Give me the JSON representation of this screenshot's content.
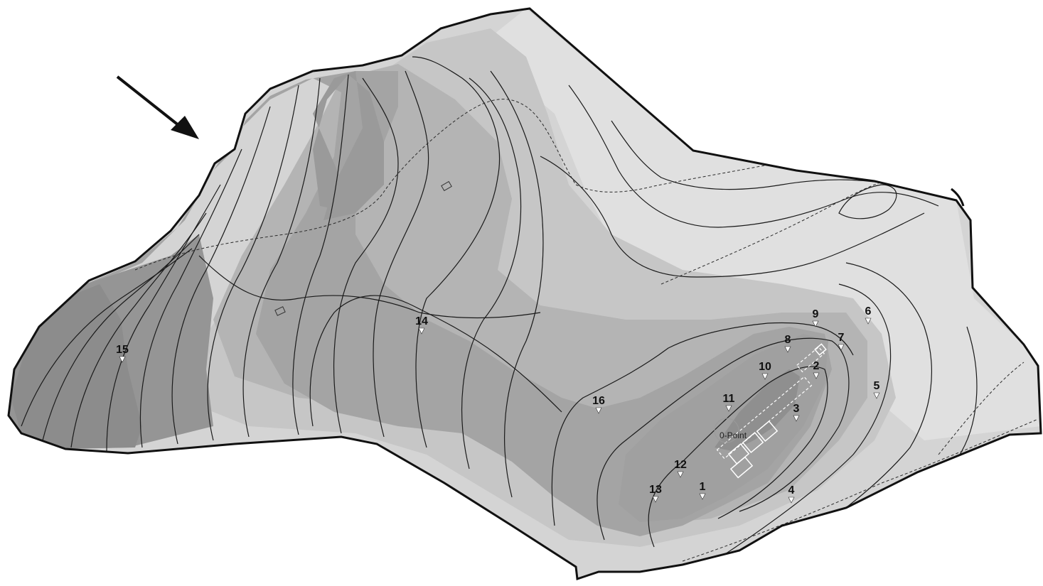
{
  "map": {
    "colors": {
      "background": "#ffffff",
      "outline": "#111111",
      "contour_line": "#1a1a1a",
      "elevation_bands": [
        "#dedede",
        "#d2d2d2",
        "#c6c6c6",
        "#b9b9b9",
        "#acacac",
        "#a0a0a0",
        "#949494",
        "#888888"
      ]
    },
    "north_arrow": {
      "icon": "direction-arrow-icon"
    },
    "survey_points": [
      {
        "id": "1",
        "label": "1"
      },
      {
        "id": "2",
        "label": "2"
      },
      {
        "id": "3",
        "label": "3"
      },
      {
        "id": "4",
        "label": "4"
      },
      {
        "id": "5",
        "label": "5"
      },
      {
        "id": "6",
        "label": "6"
      },
      {
        "id": "7",
        "label": "7"
      },
      {
        "id": "8",
        "label": "8"
      },
      {
        "id": "9",
        "label": "9"
      },
      {
        "id": "10",
        "label": "10"
      },
      {
        "id": "11",
        "label": "11"
      },
      {
        "id": "12",
        "label": "12"
      },
      {
        "id": "13",
        "label": "13"
      },
      {
        "id": "14",
        "label": "14"
      },
      {
        "id": "15",
        "label": "15"
      },
      {
        "id": "16",
        "label": "16"
      }
    ],
    "reference_point": {
      "label": "0-Point"
    },
    "structures": {
      "icon": "building-footprint-icon"
    },
    "trails": {
      "icon": "dashed-path-icon"
    }
  }
}
